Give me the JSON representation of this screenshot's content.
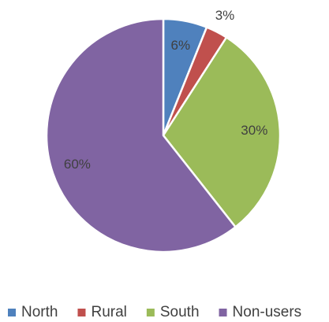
{
  "chart_data": {
    "type": "pie",
    "categories": [
      "North",
      "Rural",
      "South",
      "Non-users"
    ],
    "values": [
      6,
      3,
      30,
      60
    ],
    "value_labels": [
      "6%",
      "3%",
      "30%",
      "60%"
    ],
    "colors": [
      "#4f81bd",
      "#c0504d",
      "#9bbb59",
      "#8064a2"
    ],
    "legend": "bottom"
  }
}
